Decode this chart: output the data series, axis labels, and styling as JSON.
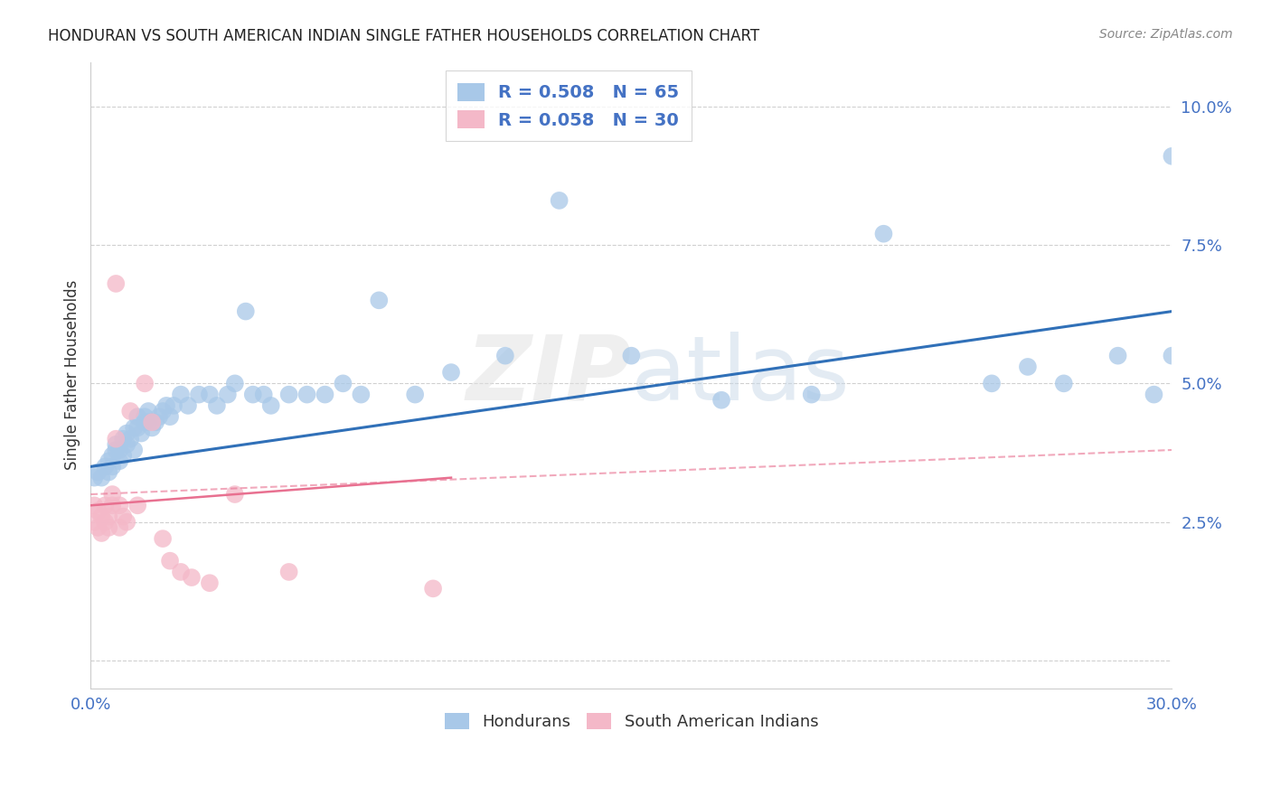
{
  "title": "HONDURAN VS SOUTH AMERICAN INDIAN SINGLE FATHER HOUSEHOLDS CORRELATION CHART",
  "source": "Source: ZipAtlas.com",
  "ylabel": "Single Father Households",
  "watermark": "ZIPatlas",
  "legend_blue_r": "R = 0.508",
  "legend_blue_n": "N = 65",
  "legend_pink_r": "R = 0.058",
  "legend_pink_n": "N = 30",
  "blue_color": "#a8c8e8",
  "pink_color": "#f4b8c8",
  "blue_line_color": "#3070b8",
  "pink_line_color": "#e87090",
  "legend_color": "#4472c4",
  "grid_color": "#d0d0d0",
  "background_color": "#ffffff",
  "blue_scatter_x": [
    0.001,
    0.002,
    0.003,
    0.004,
    0.005,
    0.005,
    0.006,
    0.006,
    0.007,
    0.007,
    0.008,
    0.008,
    0.009,
    0.009,
    0.01,
    0.01,
    0.011,
    0.012,
    0.012,
    0.013,
    0.013,
    0.014,
    0.015,
    0.015,
    0.016,
    0.016,
    0.017,
    0.018,
    0.019,
    0.02,
    0.021,
    0.022,
    0.023,
    0.025,
    0.027,
    0.03,
    0.033,
    0.035,
    0.038,
    0.04,
    0.043,
    0.045,
    0.048,
    0.05,
    0.055,
    0.06,
    0.065,
    0.07,
    0.075,
    0.08,
    0.09,
    0.1,
    0.115,
    0.13,
    0.15,
    0.175,
    0.2,
    0.22,
    0.25,
    0.26,
    0.27,
    0.285,
    0.295,
    0.3,
    0.3
  ],
  "blue_scatter_y": [
    0.033,
    0.034,
    0.033,
    0.035,
    0.034,
    0.036,
    0.035,
    0.037,
    0.038,
    0.039,
    0.036,
    0.038,
    0.037,
    0.04,
    0.039,
    0.041,
    0.04,
    0.038,
    0.042,
    0.042,
    0.044,
    0.041,
    0.043,
    0.044,
    0.043,
    0.045,
    0.042,
    0.043,
    0.044,
    0.045,
    0.046,
    0.044,
    0.046,
    0.048,
    0.046,
    0.048,
    0.048,
    0.046,
    0.048,
    0.05,
    0.063,
    0.048,
    0.048,
    0.046,
    0.048,
    0.048,
    0.048,
    0.05,
    0.048,
    0.065,
    0.048,
    0.052,
    0.055,
    0.083,
    0.055,
    0.047,
    0.048,
    0.077,
    0.05,
    0.053,
    0.05,
    0.055,
    0.048,
    0.055,
    0.091
  ],
  "pink_scatter_x": [
    0.001,
    0.001,
    0.002,
    0.002,
    0.003,
    0.003,
    0.004,
    0.004,
    0.005,
    0.005,
    0.006,
    0.006,
    0.007,
    0.007,
    0.008,
    0.008,
    0.009,
    0.01,
    0.011,
    0.013,
    0.015,
    0.017,
    0.02,
    0.022,
    0.025,
    0.028,
    0.033,
    0.04,
    0.055,
    0.095
  ],
  "pink_scatter_y": [
    0.028,
    0.025,
    0.027,
    0.024,
    0.026,
    0.023,
    0.025,
    0.028,
    0.026,
    0.024,
    0.028,
    0.03,
    0.068,
    0.04,
    0.024,
    0.028,
    0.026,
    0.025,
    0.045,
    0.028,
    0.05,
    0.043,
    0.022,
    0.018,
    0.016,
    0.015,
    0.014,
    0.03,
    0.016,
    0.013
  ],
  "blue_line_x": [
    0.0,
    0.3
  ],
  "blue_line_y": [
    0.035,
    0.063
  ],
  "pink_solid_line_x": [
    0.0,
    0.1
  ],
  "pink_solid_line_y": [
    0.028,
    0.033
  ],
  "pink_dash_line_x": [
    0.0,
    0.3
  ],
  "pink_dash_line_y": [
    0.03,
    0.038
  ],
  "xlim": [
    0.0,
    0.3
  ],
  "ylim": [
    -0.005,
    0.108
  ],
  "yticks": [
    0.0,
    0.025,
    0.05,
    0.075,
    0.1
  ],
  "ytick_labels": [
    "",
    "2.5%",
    "5.0%",
    "7.5%",
    "10.0%"
  ],
  "xticks": [
    0.0,
    0.06,
    0.12,
    0.18,
    0.24,
    0.3
  ],
  "xtick_labels": [
    "0.0%",
    "",
    "",
    "",
    "",
    "30.0%"
  ]
}
